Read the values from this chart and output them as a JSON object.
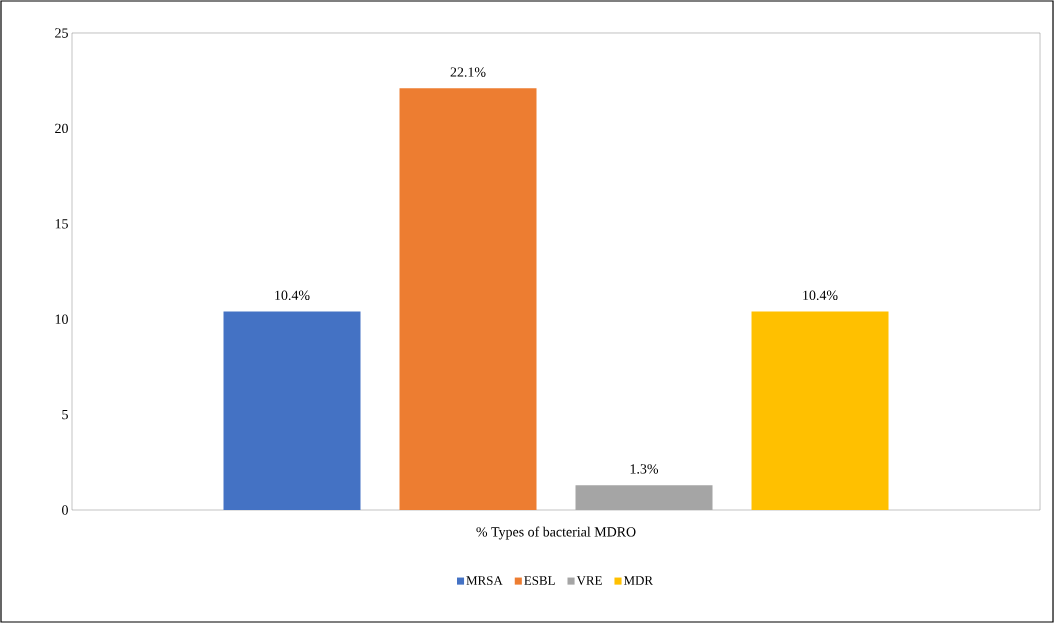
{
  "chart_data": {
    "type": "bar",
    "xlabel": "% Types of bacterial MDRO",
    "categories": [
      null
    ],
    "series": [
      {
        "name": "MRSA",
        "color": "#4472c4",
        "values": [
          10.4
        ],
        "value_labels": [
          "10.4%"
        ]
      },
      {
        "name": "ESBL",
        "color": "#ed7d31",
        "values": [
          22.1
        ],
        "value_labels": [
          "22.1%"
        ]
      },
      {
        "name": "VRE",
        "color": "#a5a5a5",
        "values": [
          1.3
        ],
        "value_labels": [
          "1.3%"
        ]
      },
      {
        "name": "MDR",
        "color": "#ffc000",
        "values": [
          10.4
        ],
        "value_labels": [
          "10.4%"
        ]
      }
    ],
    "ylim": [
      0,
      25
    ],
    "yticks": [
      {
        "value": 0,
        "label": "0"
      },
      {
        "value": 5,
        "label": "5"
      },
      {
        "value": 10,
        "label": "10"
      },
      {
        "value": 15,
        "label": "15"
      },
      {
        "value": 20,
        "label": "20"
      },
      {
        "value": 25,
        "label": "25"
      }
    ],
    "grid": false,
    "legend": "bottom"
  }
}
